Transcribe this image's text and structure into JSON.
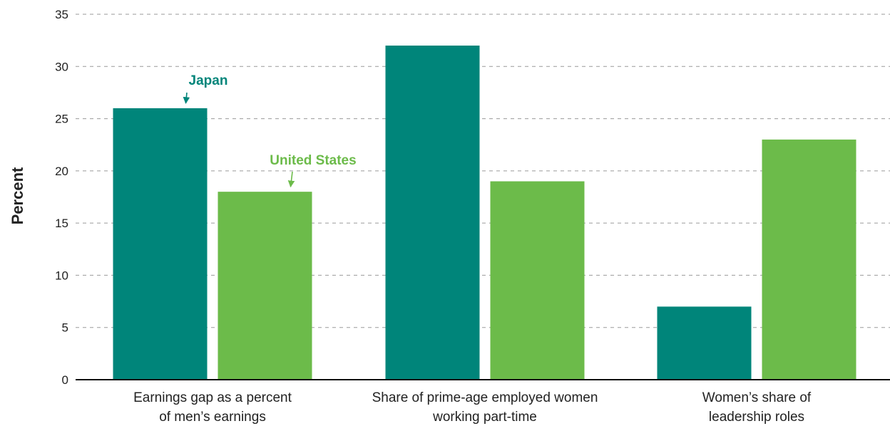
{
  "chart_data": {
    "type": "bar",
    "title": "",
    "xlabel": "",
    "ylabel": "Percent",
    "ylim": [
      0,
      35
    ],
    "yticks": [
      0,
      5,
      10,
      15,
      20,
      25,
      30,
      35
    ],
    "grid": true,
    "categories": [
      [
        "Earnings gap as a percent",
        "of men’s earnings"
      ],
      [
        "Share of prime-age employed women",
        "working part-time"
      ],
      [
        "Women’s share of",
        "leadership roles"
      ]
    ],
    "series": [
      {
        "name": "Japan",
        "color": "#00857a",
        "values": [
          26,
          32,
          7
        ]
      },
      {
        "name": "United States",
        "color": "#6cbb4a",
        "values": [
          18,
          19,
          23
        ]
      }
    ],
    "annotations": [
      {
        "text": "Japan",
        "series": 0,
        "category": 0
      },
      {
        "text": "United States",
        "series": 1,
        "category": 0
      }
    ]
  }
}
